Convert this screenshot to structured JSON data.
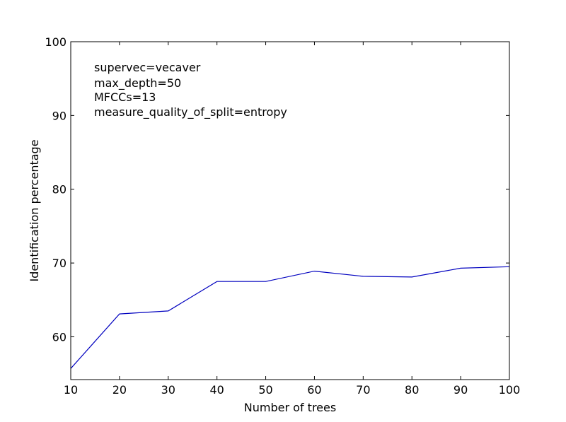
{
  "chart_data": {
    "type": "line",
    "title": "",
    "xlabel": "Number of trees",
    "ylabel": "Identification percentage",
    "xlim": [
      10,
      100
    ],
    "ylim": [
      54.2,
      100
    ],
    "xticks": [
      10,
      20,
      30,
      40,
      50,
      60,
      70,
      80,
      90,
      100
    ],
    "yticks": [
      60,
      70,
      80,
      90,
      100
    ],
    "grid": false,
    "series": [
      {
        "color": "#0000bf",
        "x": [
          10,
          20,
          30,
          40,
          50,
          60,
          70,
          80,
          90,
          100
        ],
        "y": [
          55.7,
          63.1,
          63.5,
          67.5,
          67.5,
          68.9,
          68.2,
          68.1,
          69.3,
          69.5
        ]
      }
    ],
    "annotations": [
      "supervec=vecaver",
      "max_depth=50",
      "MFCCs=13",
      "measure_quality_of_split=entropy"
    ]
  }
}
